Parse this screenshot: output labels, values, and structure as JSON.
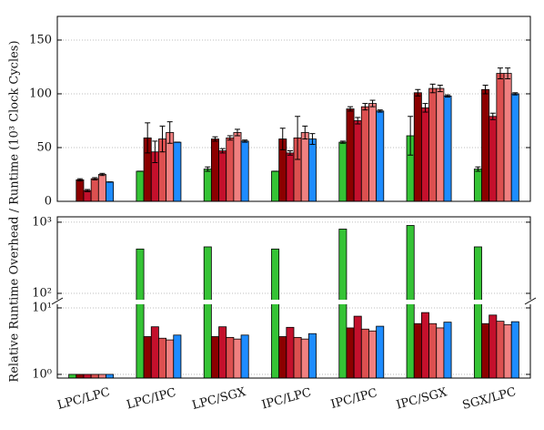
{
  "chart_data": [
    {
      "type": "bar",
      "log": false,
      "ylim": [
        0,
        172
      ],
      "yticks": [
        0,
        50,
        100,
        150
      ],
      "grid": true,
      "series": [
        {
          "color": "#35c335",
          "values": [
            null,
            28,
            30,
            28,
            55,
            61,
            30
          ],
          "errors": [
            null,
            0,
            2,
            0,
            1,
            18,
            2
          ]
        },
        {
          "color": "#8b0000",
          "values": [
            20,
            59,
            58,
            58,
            86,
            101,
            104
          ],
          "errors": [
            1,
            14,
            2,
            10,
            2,
            3,
            4
          ]
        },
        {
          "color": "#c4102c",
          "values": [
            10,
            46,
            47,
            45,
            75,
            87,
            79
          ],
          "errors": [
            1,
            10,
            2,
            2,
            3,
            4,
            3
          ]
        },
        {
          "color": "#dc5050",
          "values": [
            21,
            58,
            59,
            59,
            88,
            105,
            119
          ],
          "errors": [
            1,
            12,
            2,
            20,
            3,
            4,
            5
          ]
        },
        {
          "color": "#f08080",
          "values": [
            25,
            64,
            64,
            64,
            91,
            105,
            119
          ],
          "errors": [
            1,
            10,
            3,
            6,
            3,
            3,
            5
          ]
        },
        {
          "color": "#1e8cff",
          "values": [
            18,
            55,
            56,
            58,
            84,
            98,
            100
          ],
          "errors": [
            0,
            0,
            1,
            5,
            1,
            1,
            1
          ]
        }
      ]
    },
    {
      "type": "bar",
      "log": true,
      "grid": true,
      "ylabel": "Relative Runtime Overhead / Runtime (10³ Clock Cycles)",
      "categories": [
        "LPC/LPC",
        "LPC/IPC",
        "LPC/SGX",
        "IPC/LPC",
        "IPC/IPC",
        "IPC/SGX",
        "SGX/LPC"
      ],
      "panels": [
        {
          "ylim": [
            79,
            1190
          ],
          "yticks": [
            {
              "value": 100,
              "label": "10²"
            },
            {
              "value": 1000,
              "label": "10³"
            }
          ]
        },
        {
          "ylim": [
            0.88,
            11.7
          ],
          "yticks": [
            {
              "value": 1,
              "label": "10⁰"
            },
            {
              "value": 10,
              "label": "10¹"
            }
          ]
        }
      ],
      "series": [
        {
          "color": "#35c335",
          "values": [
            1,
            420,
            450,
            420,
            800,
            900,
            450
          ]
        },
        {
          "color": "#8b0000",
          "values": [
            1,
            3.7,
            3.7,
            3.7,
            5.0,
            5.8,
            5.8
          ]
        },
        {
          "color": "#c4102c",
          "values": [
            1,
            5.2,
            5.2,
            5.1,
            7.5,
            8.5,
            7.8
          ]
        },
        {
          "color": "#dc5050",
          "values": [
            1,
            3.5,
            3.6,
            3.6,
            4.8,
            5.8,
            6.3
          ]
        },
        {
          "color": "#f08080",
          "values": [
            1,
            3.3,
            3.4,
            3.4,
            4.5,
            5.0,
            5.6
          ]
        },
        {
          "color": "#1e8cff",
          "values": [
            1,
            3.9,
            3.9,
            4.1,
            5.3,
            6.1,
            6.2
          ]
        }
      ]
    }
  ]
}
